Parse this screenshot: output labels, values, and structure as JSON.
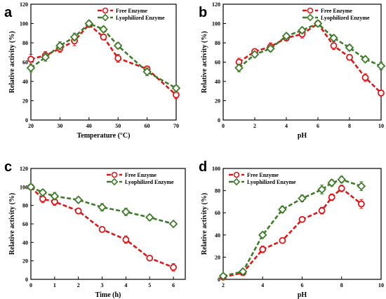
{
  "colors": {
    "free": "#d7191c",
    "lyo": "#3f7a2a",
    "axis": "#000000"
  },
  "chart_data": [
    {
      "panel": "a",
      "type": "line",
      "xlabel": "Temperature (°C)",
      "ylabel": "Relative activity (%)",
      "xlim": [
        20,
        70
      ],
      "ylim": [
        0,
        120
      ],
      "xticks": [
        20,
        30,
        40,
        50,
        60,
        70
      ],
      "yticks": [
        0,
        20,
        40,
        60,
        80,
        100,
        120
      ],
      "legend": "top-right",
      "series": [
        {
          "name": "Free Enzyme",
          "key": "free",
          "x": [
            20,
            25,
            30,
            35,
            40,
            45,
            50,
            60,
            70
          ],
          "y": [
            63,
            67,
            74,
            82,
            99,
            86,
            64,
            53,
            26
          ],
          "err": [
            5,
            4,
            4,
            5,
            3,
            3,
            4,
            3,
            4
          ]
        },
        {
          "name": "Lyophilized Enzyme",
          "key": "lyo",
          "x": [
            20,
            25,
            30,
            35,
            40,
            45,
            50,
            60,
            70
          ],
          "y": [
            54,
            65,
            77,
            86,
            100,
            94,
            77,
            50,
            33
          ],
          "err": [
            4,
            4,
            4,
            4,
            3,
            3,
            3,
            4,
            3
          ]
        }
      ]
    },
    {
      "panel": "b",
      "type": "line",
      "xlabel": "pH",
      "ylabel": "Relative activity (%)",
      "xlim": [
        0,
        10
      ],
      "ylim": [
        0,
        120
      ],
      "xticks": [
        0,
        2,
        4,
        6,
        8,
        10
      ],
      "yticks": [
        0,
        20,
        40,
        60,
        80,
        100,
        120
      ],
      "legend": "top-right",
      "series": [
        {
          "name": "Free Enzyme",
          "key": "free",
          "x": [
            1,
            2,
            3,
            4,
            5,
            6,
            7,
            8,
            9,
            10
          ],
          "y": [
            60,
            71,
            76,
            85,
            89,
            100,
            77,
            65,
            44,
            28
          ],
          "err": [
            4,
            3,
            4,
            3,
            4,
            3,
            4,
            3,
            4,
            3
          ]
        },
        {
          "name": "Lyophilized Enzyme",
          "key": "lyo",
          "x": [
            1,
            2,
            3,
            4,
            5,
            6,
            7,
            8,
            9,
            10
          ],
          "y": [
            54,
            68,
            74,
            87,
            93,
            100,
            85,
            75,
            63,
            56
          ],
          "err": [
            4,
            3,
            3,
            3,
            3,
            3,
            3,
            3,
            3,
            4
          ]
        }
      ]
    },
    {
      "panel": "c",
      "type": "line",
      "xlabel": "Time (h)",
      "ylabel": "Relative activity (%)",
      "xlim": [
        0,
        6.5
      ],
      "ylim": [
        0,
        120
      ],
      "xticks": [
        0,
        1,
        2,
        3,
        4,
        5,
        6
      ],
      "yticks": [
        0,
        20,
        40,
        60,
        80,
        100,
        120
      ],
      "legend": "top-right",
      "series": [
        {
          "name": "Free Enzyme",
          "key": "free",
          "x": [
            0,
            0.5,
            1,
            2,
            3,
            4,
            5,
            6
          ],
          "y": [
            100,
            87,
            84,
            74,
            54,
            43,
            23,
            13
          ],
          "err": [
            3,
            4,
            4,
            3,
            3,
            4,
            2,
            4
          ]
        },
        {
          "name": "Lyophilized Enzyme",
          "key": "lyo",
          "x": [
            0,
            0.5,
            1,
            2,
            3,
            4,
            5,
            6
          ],
          "y": [
            100,
            94,
            90,
            86,
            78,
            73,
            67,
            60
          ],
          "err": [
            3,
            3,
            4,
            3,
            4,
            4,
            3,
            2
          ]
        }
      ]
    },
    {
      "panel": "d",
      "type": "line",
      "xlabel": "pH",
      "ylabel": "Relative activity (%)",
      "xlim": [
        2,
        10
      ],
      "ylim": [
        0,
        100
      ],
      "xticks": [
        2,
        4,
        6,
        8,
        10
      ],
      "yticks": [
        0,
        20,
        40,
        60,
        80,
        100
      ],
      "legend": "top-left",
      "series": [
        {
          "name": "Free Enzyme",
          "key": "free",
          "x": [
            2,
            3,
            4,
            5,
            6,
            7,
            7.5,
            8,
            9
          ],
          "y": [
            2,
            6,
            27,
            35,
            54,
            62,
            74,
            82,
            68
          ],
          "err": [
            1,
            2,
            3,
            2,
            2,
            3,
            3,
            3,
            4
          ]
        },
        {
          "name": "Lyophilized Enzyme",
          "key": "lyo",
          "x": [
            2,
            3,
            4,
            5,
            6,
            7,
            7.5,
            8,
            9
          ],
          "y": [
            3,
            7,
            40,
            63,
            73,
            81,
            87,
            90,
            84
          ],
          "err": [
            1,
            2,
            2,
            3,
            3,
            4,
            3,
            3,
            4
          ]
        }
      ]
    }
  ]
}
